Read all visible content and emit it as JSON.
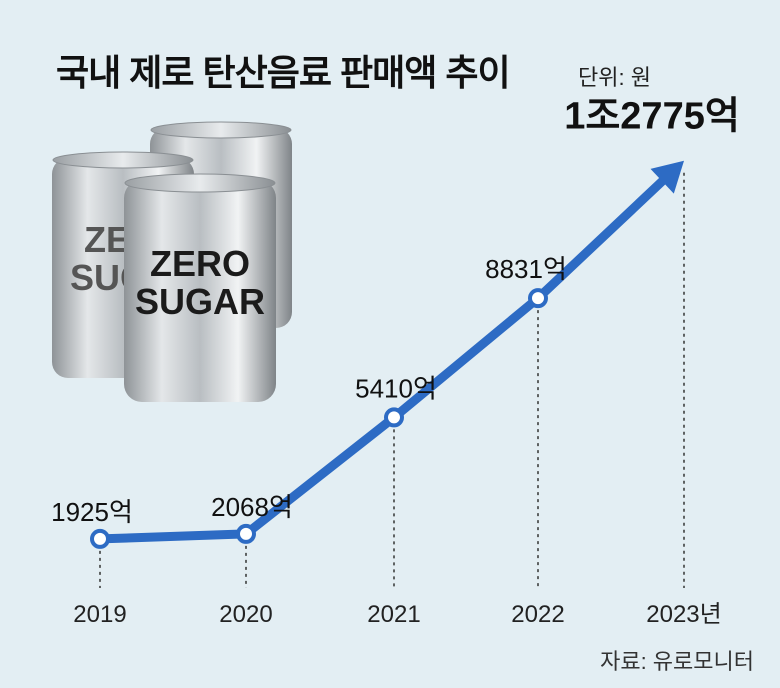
{
  "title": "국내 제로 탄산음료 판매액 추이",
  "unit": "단위: 원",
  "source": "자료: 유로모니터",
  "illustration": {
    "can_text_line1": "ZERO",
    "can_text_line2": "SUGAR",
    "back_can_line1": "ZE",
    "back_can_line2": "SUG"
  },
  "colors": {
    "line": "#2d6bc4",
    "background": "#e3eef3",
    "text": "#111111"
  },
  "chart_data": {
    "type": "line",
    "title": "국내 제로 탄산음료 판매액 추이",
    "xlabel": "",
    "ylabel": "",
    "categories": [
      "2019",
      "2020",
      "2021",
      "2022",
      "2023년"
    ],
    "values": [
      1925,
      2068,
      5410,
      8831,
      12775
    ],
    "value_unit": "억",
    "data_labels": [
      "1925억",
      "2068억",
      "5410억",
      "8831억",
      "1조2775억"
    ],
    "ylim": [
      0,
      14000
    ],
    "grid": false,
    "last_point_arrow": true
  }
}
